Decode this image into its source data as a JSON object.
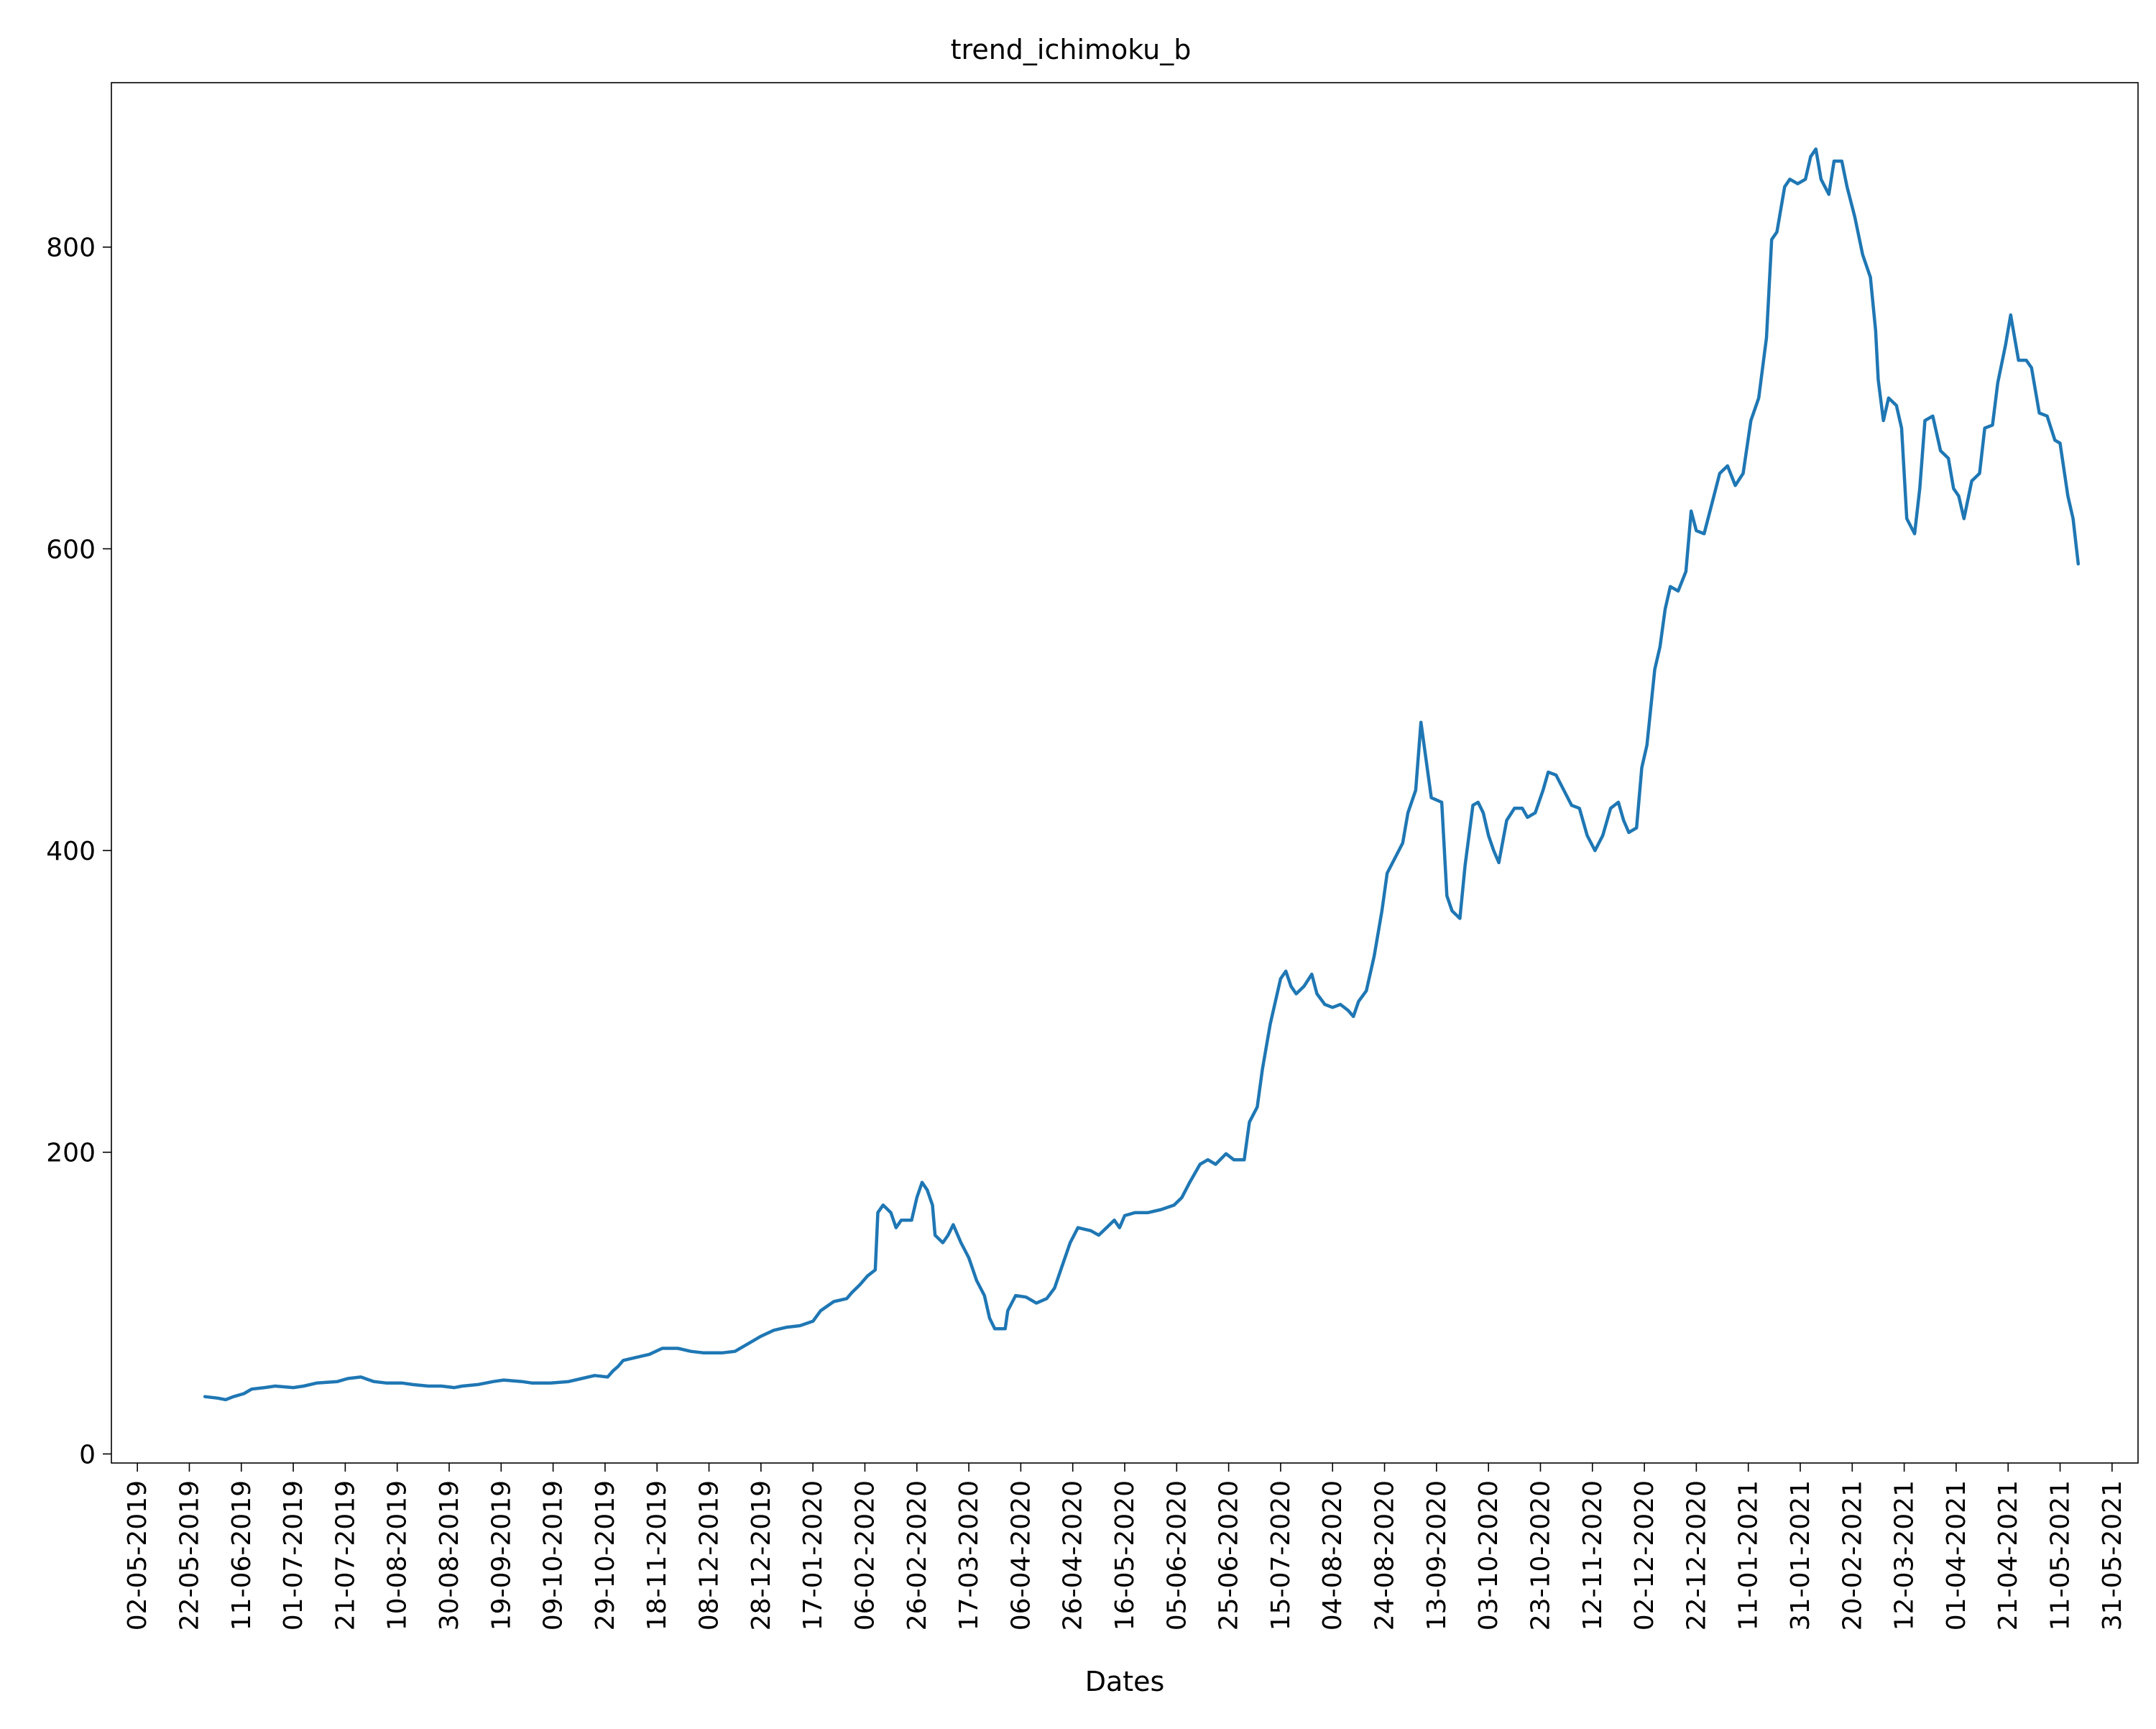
{
  "chart_data": {
    "type": "line",
    "title": "trend_ichimoku_b",
    "xlabel": "Dates",
    "ylabel": "",
    "x_axis_type": "date",
    "xlim": [
      "2019-04-22",
      "2021-06-10"
    ],
    "ylim": [
      -6,
      909
    ],
    "grid": false,
    "legend": "none",
    "line_color": "#1f77b4",
    "x_tick_labels": [
      "02-05-2019",
      "22-05-2019",
      "11-06-2019",
      "01-07-2019",
      "21-07-2019",
      "10-08-2019",
      "30-08-2019",
      "19-09-2019",
      "09-10-2019",
      "29-10-2019",
      "18-11-2019",
      "08-12-2019",
      "28-12-2019",
      "17-01-2020",
      "06-02-2020",
      "26-02-2020",
      "17-03-2020",
      "06-04-2020",
      "26-04-2020",
      "16-05-2020",
      "05-06-2020",
      "25-06-2020",
      "15-07-2020",
      "04-08-2020",
      "24-08-2020",
      "13-09-2020",
      "03-10-2020",
      "23-10-2020",
      "12-11-2020",
      "02-12-2020",
      "22-12-2020",
      "11-01-2021",
      "31-01-2021",
      "20-02-2021",
      "12-03-2021",
      "01-04-2021",
      "21-04-2021",
      "11-05-2021",
      "31-05-2021"
    ],
    "y_tick_labels": [
      "0",
      "200",
      "400",
      "600",
      "800"
    ],
    "y_ticks": [
      0,
      200,
      400,
      600,
      800
    ],
    "series": [
      {
        "points": [
          [
            "2019-05-28",
            38
          ],
          [
            "2019-06-02",
            37
          ],
          [
            "2019-06-05",
            36
          ],
          [
            "2019-06-08",
            38
          ],
          [
            "2019-06-12",
            40
          ],
          [
            "2019-06-15",
            43
          ],
          [
            "2019-06-20",
            44
          ],
          [
            "2019-06-24",
            45
          ],
          [
            "2019-07-01",
            44
          ],
          [
            "2019-07-05",
            45
          ],
          [
            "2019-07-10",
            47
          ],
          [
            "2019-07-18",
            48
          ],
          [
            "2019-07-22",
            50
          ],
          [
            "2019-07-27",
            51
          ],
          [
            "2019-08-01",
            48
          ],
          [
            "2019-08-06",
            47
          ],
          [
            "2019-08-12",
            47
          ],
          [
            "2019-08-16",
            46
          ],
          [
            "2019-08-22",
            45
          ],
          [
            "2019-08-27",
            45
          ],
          [
            "2019-09-01",
            44
          ],
          [
            "2019-09-04",
            45
          ],
          [
            "2019-09-10",
            46
          ],
          [
            "2019-09-16",
            48
          ],
          [
            "2019-09-20",
            49
          ],
          [
            "2019-09-27",
            48
          ],
          [
            "2019-10-01",
            47
          ],
          [
            "2019-10-08",
            47
          ],
          [
            "2019-10-15",
            48
          ],
          [
            "2019-10-20",
            50
          ],
          [
            "2019-10-25",
            52
          ],
          [
            "2019-10-30",
            51
          ],
          [
            "2019-11-01",
            55
          ],
          [
            "2019-11-03",
            58
          ],
          [
            "2019-11-05",
            62
          ],
          [
            "2019-11-10",
            64
          ],
          [
            "2019-11-15",
            66
          ],
          [
            "2019-11-20",
            70
          ],
          [
            "2019-11-26",
            70
          ],
          [
            "2019-12-01",
            68
          ],
          [
            "2019-12-06",
            67
          ],
          [
            "2019-12-13",
            67
          ],
          [
            "2019-12-18",
            68
          ],
          [
            "2019-12-23",
            73
          ],
          [
            "2019-12-28",
            78
          ],
          [
            "2020-01-02",
            82
          ],
          [
            "2020-01-07",
            84
          ],
          [
            "2020-01-12",
            85
          ],
          [
            "2020-01-17",
            88
          ],
          [
            "2020-01-20",
            95
          ],
          [
            "2020-01-25",
            101
          ],
          [
            "2020-01-30",
            103
          ],
          [
            "2020-02-01",
            107
          ],
          [
            "2020-02-04",
            112
          ],
          [
            "2020-02-07",
            118
          ],
          [
            "2020-02-10",
            122
          ],
          [
            "2020-02-11",
            160
          ],
          [
            "2020-02-13",
            165
          ],
          [
            "2020-02-16",
            160
          ],
          [
            "2020-02-18",
            150
          ],
          [
            "2020-02-20",
            155
          ],
          [
            "2020-02-24",
            155
          ],
          [
            "2020-02-26",
            170
          ],
          [
            "2020-02-28",
            180
          ],
          [
            "2020-03-01",
            175
          ],
          [
            "2020-03-03",
            165
          ],
          [
            "2020-03-04",
            145
          ],
          [
            "2020-03-07",
            140
          ],
          [
            "2020-03-09",
            145
          ],
          [
            "2020-03-11",
            152
          ],
          [
            "2020-03-14",
            140
          ],
          [
            "2020-03-17",
            130
          ],
          [
            "2020-03-20",
            115
          ],
          [
            "2020-03-23",
            105
          ],
          [
            "2020-03-25",
            90
          ],
          [
            "2020-03-27",
            83
          ],
          [
            "2020-03-31",
            83
          ],
          [
            "2020-04-01",
            95
          ],
          [
            "2020-04-04",
            105
          ],
          [
            "2020-04-08",
            104
          ],
          [
            "2020-04-12",
            100
          ],
          [
            "2020-04-16",
            103
          ],
          [
            "2020-04-19",
            110
          ],
          [
            "2020-04-22",
            125
          ],
          [
            "2020-04-25",
            140
          ],
          [
            "2020-04-28",
            150
          ],
          [
            "2020-05-03",
            148
          ],
          [
            "2020-05-06",
            145
          ],
          [
            "2020-05-09",
            150
          ],
          [
            "2020-05-12",
            155
          ],
          [
            "2020-05-14",
            150
          ],
          [
            "2020-05-16",
            158
          ],
          [
            "2020-05-20",
            160
          ],
          [
            "2020-05-25",
            160
          ],
          [
            "2020-05-30",
            162
          ],
          [
            "2020-06-04",
            165
          ],
          [
            "2020-06-07",
            170
          ],
          [
            "2020-06-10",
            180
          ],
          [
            "2020-06-14",
            192
          ],
          [
            "2020-06-17",
            195
          ],
          [
            "2020-06-20",
            192
          ],
          [
            "2020-06-24",
            199
          ],
          [
            "2020-06-27",
            195
          ],
          [
            "2020-07-01",
            195
          ],
          [
            "2020-07-03",
            220
          ],
          [
            "2020-07-06",
            230
          ],
          [
            "2020-07-08",
            255
          ],
          [
            "2020-07-11",
            285
          ],
          [
            "2020-07-13",
            300
          ],
          [
            "2020-07-15",
            315
          ],
          [
            "2020-07-17",
            320
          ],
          [
            "2020-07-19",
            310
          ],
          [
            "2020-07-21",
            305
          ],
          [
            "2020-07-24",
            310
          ],
          [
            "2020-07-27",
            318
          ],
          [
            "2020-07-29",
            305
          ],
          [
            "2020-08-01",
            298
          ],
          [
            "2020-08-04",
            296
          ],
          [
            "2020-08-07",
            298
          ],
          [
            "2020-08-10",
            294
          ],
          [
            "2020-08-12",
            290
          ],
          [
            "2020-08-14",
            300
          ],
          [
            "2020-08-17",
            307
          ],
          [
            "2020-08-20",
            330
          ],
          [
            "2020-08-23",
            360
          ],
          [
            "2020-08-25",
            385
          ],
          [
            "2020-08-28",
            395
          ],
          [
            "2020-08-31",
            405
          ],
          [
            "2020-09-02",
            425
          ],
          [
            "2020-09-05",
            440
          ],
          [
            "2020-09-07",
            485
          ],
          [
            "2020-09-09",
            460
          ],
          [
            "2020-09-11",
            435
          ],
          [
            "2020-09-15",
            432
          ],
          [
            "2020-09-17",
            370
          ],
          [
            "2020-09-19",
            360
          ],
          [
            "2020-09-22",
            355
          ],
          [
            "2020-09-24",
            390
          ],
          [
            "2020-09-27",
            430
          ],
          [
            "2020-09-29",
            432
          ],
          [
            "2020-10-01",
            425
          ],
          [
            "2020-10-03",
            410
          ],
          [
            "2020-10-05",
            400
          ],
          [
            "2020-10-07",
            392
          ],
          [
            "2020-10-10",
            420
          ],
          [
            "2020-10-13",
            428
          ],
          [
            "2020-10-16",
            428
          ],
          [
            "2020-10-18",
            422
          ],
          [
            "2020-10-21",
            425
          ],
          [
            "2020-10-24",
            440
          ],
          [
            "2020-10-26",
            452
          ],
          [
            "2020-10-29",
            450
          ],
          [
            "2020-11-01",
            440
          ],
          [
            "2020-11-04",
            430
          ],
          [
            "2020-11-07",
            428
          ],
          [
            "2020-11-10",
            410
          ],
          [
            "2020-11-13",
            400
          ],
          [
            "2020-11-16",
            410
          ],
          [
            "2020-11-19",
            428
          ],
          [
            "2020-11-22",
            432
          ],
          [
            "2020-11-24",
            420
          ],
          [
            "2020-11-26",
            412
          ],
          [
            "2020-11-29",
            415
          ],
          [
            "2020-12-01",
            455
          ],
          [
            "2020-12-03",
            470
          ],
          [
            "2020-12-06",
            520
          ],
          [
            "2020-12-08",
            535
          ],
          [
            "2020-12-10",
            560
          ],
          [
            "2020-12-12",
            575
          ],
          [
            "2020-12-15",
            572
          ],
          [
            "2020-12-18",
            585
          ],
          [
            "2020-12-20",
            625
          ],
          [
            "2020-12-22",
            612
          ],
          [
            "2020-12-25",
            610
          ],
          [
            "2020-12-28",
            630
          ],
          [
            "2020-12-31",
            650
          ],
          [
            "2021-01-03",
            655
          ],
          [
            "2021-01-06",
            642
          ],
          [
            "2021-01-09",
            650
          ],
          [
            "2021-01-12",
            685
          ],
          [
            "2021-01-15",
            700
          ],
          [
            "2021-01-18",
            740
          ],
          [
            "2021-01-20",
            805
          ],
          [
            "2021-01-22",
            810
          ],
          [
            "2021-01-25",
            840
          ],
          [
            "2021-01-27",
            845
          ],
          [
            "2021-01-30",
            842
          ],
          [
            "2021-02-02",
            845
          ],
          [
            "2021-02-04",
            860
          ],
          [
            "2021-02-06",
            865
          ],
          [
            "2021-02-08",
            845
          ],
          [
            "2021-02-11",
            835
          ],
          [
            "2021-02-13",
            857
          ],
          [
            "2021-02-16",
            857
          ],
          [
            "2021-02-18",
            840
          ],
          [
            "2021-02-21",
            820
          ],
          [
            "2021-02-24",
            795
          ],
          [
            "2021-02-27",
            780
          ],
          [
            "2021-03-01",
            745
          ],
          [
            "2021-03-02",
            712
          ],
          [
            "2021-03-04",
            685
          ],
          [
            "2021-03-06",
            700
          ],
          [
            "2021-03-09",
            695
          ],
          [
            "2021-03-11",
            680
          ],
          [
            "2021-03-13",
            620
          ],
          [
            "2021-03-16",
            610
          ],
          [
            "2021-03-18",
            640
          ],
          [
            "2021-03-20",
            685
          ],
          [
            "2021-03-23",
            688
          ],
          [
            "2021-03-26",
            665
          ],
          [
            "2021-03-29",
            660
          ],
          [
            "2021-03-31",
            640
          ],
          [
            "2021-04-02",
            635
          ],
          [
            "2021-04-04",
            620
          ],
          [
            "2021-04-07",
            645
          ],
          [
            "2021-04-10",
            650
          ],
          [
            "2021-04-12",
            680
          ],
          [
            "2021-04-15",
            682
          ],
          [
            "2021-04-17",
            710
          ],
          [
            "2021-04-20",
            735
          ],
          [
            "2021-04-22",
            755
          ],
          [
            "2021-04-25",
            725
          ],
          [
            "2021-04-28",
            725
          ],
          [
            "2021-04-30",
            720
          ],
          [
            "2021-05-03",
            690
          ],
          [
            "2021-05-06",
            688
          ],
          [
            "2021-05-09",
            672
          ],
          [
            "2021-05-11",
            670
          ],
          [
            "2021-05-14",
            635
          ],
          [
            "2021-05-16",
            620
          ],
          [
            "2021-05-18",
            590
          ]
        ]
      }
    ]
  }
}
